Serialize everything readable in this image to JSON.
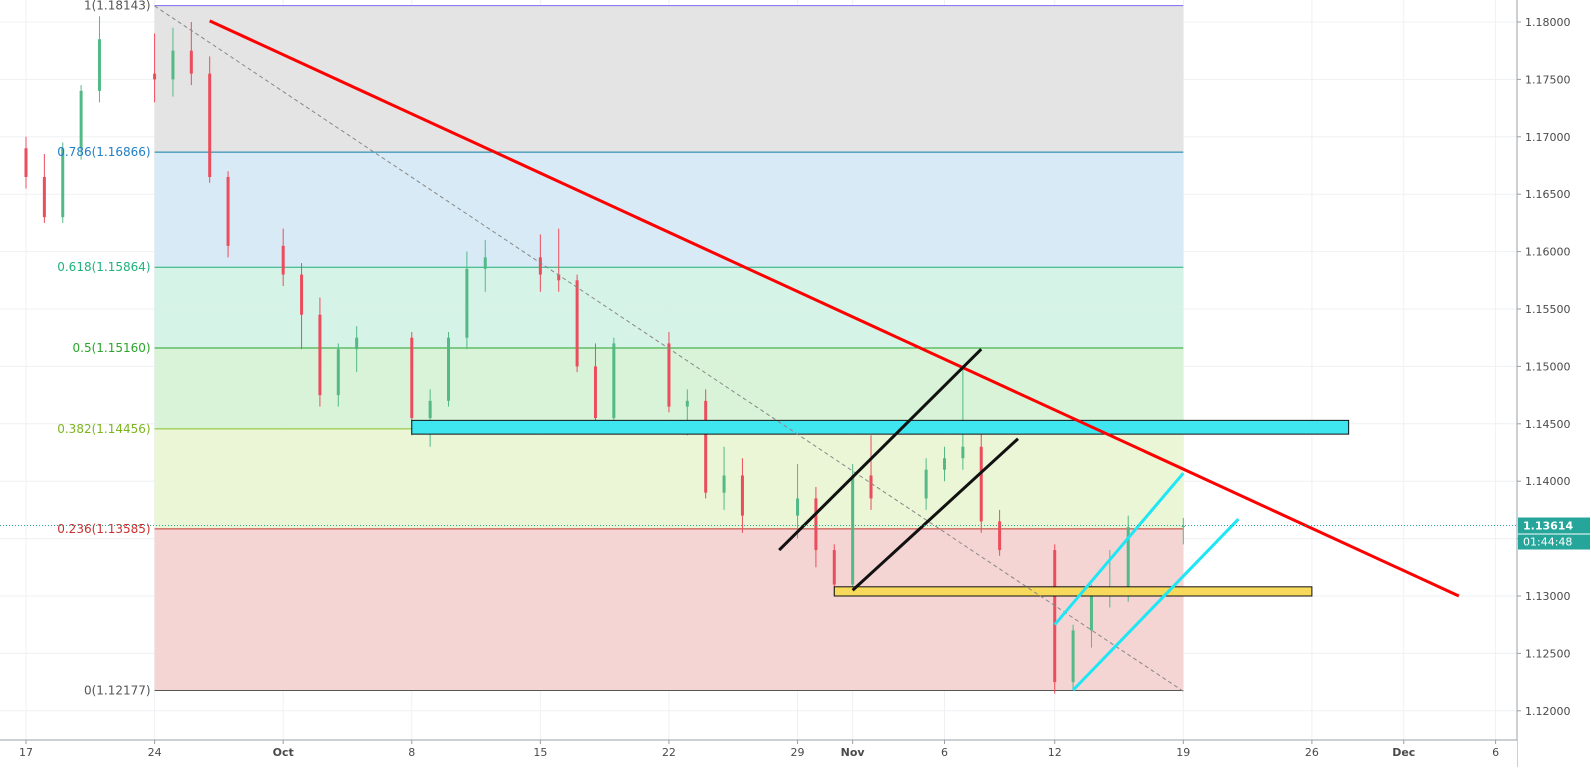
{
  "chart_data": {
    "type": "candlestick",
    "title": "",
    "xlabel": "",
    "ylabel": "",
    "ylim": [
      1.1195,
      1.182
    ],
    "y_ticks": [
      "1.18000",
      "1.17500",
      "1.17000",
      "1.16500",
      "1.16000",
      "1.15500",
      "1.15000",
      "1.14500",
      "1.14000",
      "1.13500",
      "1.13000",
      "1.12500",
      "1.12000"
    ],
    "x_ticks": [
      "17",
      "24",
      "Oct",
      "8",
      "15",
      "22",
      "29",
      "Nov",
      "6",
      "12",
      "19",
      "26",
      "Dec",
      "6"
    ],
    "x_tick_dates": [
      "2018-09-17",
      "2018-09-24",
      "2018-10-01",
      "2018-10-08",
      "2018-10-15",
      "2018-10-22",
      "2018-10-29",
      "2018-11-01",
      "2018-11-06",
      "2018-11-12",
      "2018-11-19",
      "2018-11-26",
      "2018-12-01",
      "2018-12-06"
    ],
    "current_price": "1.13614",
    "countdown": "01:44:48",
    "fib_levels": [
      {
        "ratio": "1",
        "price": 1.18143,
        "label": "1(1.18143)",
        "line_color": "#7b68ee",
        "label_color": "#555555"
      },
      {
        "ratio": "0.786",
        "price": 1.16866,
        "label": "0.786(1.16866)",
        "line_color": "#0f7ea8",
        "label_color": "#1f7fc4"
      },
      {
        "ratio": "0.618",
        "price": 1.15864,
        "label": "0.618(1.15864)",
        "line_color": "#22b07a",
        "label_color": "#1fb37d"
      },
      {
        "ratio": "0.5",
        "price": 1.1516,
        "label": "0.5(1.15160)",
        "line_color": "#2aa22a",
        "label_color": "#2aa52a"
      },
      {
        "ratio": "0.382",
        "price": 1.14456,
        "label": "0.382(1.14456)",
        "line_color": "#88c02a",
        "label_color": "#7cb520"
      },
      {
        "ratio": "0.236",
        "price": 1.13585,
        "label": "0.236(1.13585)",
        "line_color": "#c43434",
        "label_color": "#cc3030"
      },
      {
        "ratio": "0",
        "price": 1.12177,
        "label": "0(1.12177)",
        "line_color": "#555555",
        "label_color": "#555555"
      }
    ],
    "fib_zone_colors": [
      "#e2e2e2",
      "#d5e8f4",
      "#d3f2e6",
      "#d5f2d5",
      "#e8f5d2",
      "#f4d0d0"
    ],
    "trendlines": [
      {
        "name": "red-downtrend-line",
        "color": "#ff0000",
        "from": [
          "2018-09-27",
          1.1801
        ],
        "to": [
          "2018-12-04",
          1.13
        ]
      },
      {
        "name": "fib-diagonal",
        "color": "#888888",
        "dashed": true,
        "from": [
          "2018-09-24",
          1.1814
        ],
        "to": [
          "2018-11-19",
          1.1217
        ]
      },
      {
        "name": "black-channel-upper",
        "color": "#111111",
        "from": [
          "2018-10-28",
          1.134
        ],
        "to": [
          "2018-11-08",
          1.1515
        ]
      },
      {
        "name": "black-channel-lower",
        "color": "#111111",
        "from": [
          "2018-11-01",
          1.1305
        ],
        "to": [
          "2018-11-10",
          1.1437
        ]
      },
      {
        "name": "cyan-channel-upper",
        "color": "#1fe6f5",
        "from": [
          "2018-11-12",
          1.1275
        ],
        "to": [
          "2018-11-19",
          1.1407
        ]
      },
      {
        "name": "cyan-channel-lower",
        "color": "#1fe6f5",
        "from": [
          "2018-11-13",
          1.1218
        ],
        "to": [
          "2018-11-22",
          1.1367
        ]
      }
    ],
    "zones": [
      {
        "name": "cyan-resistance-zone",
        "color": "#3fe6f0",
        "from": "2018-10-08",
        "to": "2018-11-28",
        "top": 1.1453,
        "bottom": 1.1441
      },
      {
        "name": "yellow-support-zone",
        "color": "#f7d95c",
        "from": "2018-10-31",
        "to": "2018-11-26",
        "top": 1.1308,
        "bottom": 1.13
      }
    ],
    "candles": [
      [
        "2018-09-17",
        1.169,
        1.17,
        1.1655,
        1.1665
      ],
      [
        "2018-09-18",
        1.1665,
        1.1685,
        1.1625,
        1.163
      ],
      [
        "2018-09-19",
        1.163,
        1.1695,
        1.1625,
        1.169
      ],
      [
        "2018-09-20",
        1.169,
        1.1745,
        1.168,
        1.174
      ],
      [
        "2018-09-21",
        1.174,
        1.1805,
        1.173,
        1.1785
      ],
      [
        "2018-09-24",
        1.1755,
        1.179,
        1.173,
        1.175
      ],
      [
        "2018-09-25",
        1.175,
        1.1795,
        1.1735,
        1.1775
      ],
      [
        "2018-09-26",
        1.1775,
        1.18,
        1.1745,
        1.1755
      ],
      [
        "2018-09-27",
        1.1755,
        1.177,
        1.166,
        1.1665
      ],
      [
        "2018-09-28",
        1.1665,
        1.167,
        1.1595,
        1.1605
      ],
      [
        "2018-10-01",
        1.1605,
        1.162,
        1.157,
        1.158
      ],
      [
        "2018-10-02",
        1.158,
        1.159,
        1.1515,
        1.1545
      ],
      [
        "2018-10-03",
        1.1545,
        1.156,
        1.1465,
        1.1475
      ],
      [
        "2018-10-04",
        1.1475,
        1.152,
        1.1465,
        1.1515
      ],
      [
        "2018-10-05",
        1.1515,
        1.1535,
        1.1495,
        1.1525
      ],
      [
        "2018-10-08",
        1.1525,
        1.153,
        1.144,
        1.1455
      ],
      [
        "2018-10-09",
        1.1455,
        1.148,
        1.143,
        1.147
      ],
      [
        "2018-10-10",
        1.147,
        1.153,
        1.1465,
        1.1525
      ],
      [
        "2018-10-11",
        1.1525,
        1.16,
        1.1515,
        1.1585
      ],
      [
        "2018-10-12",
        1.1585,
        1.161,
        1.1565,
        1.1595
      ],
      [
        "2018-10-15",
        1.1595,
        1.1615,
        1.1565,
        1.158
      ],
      [
        "2018-10-16",
        1.158,
        1.162,
        1.1565,
        1.1575
      ],
      [
        "2018-10-17",
        1.1575,
        1.158,
        1.1495,
        1.15
      ],
      [
        "2018-10-18",
        1.15,
        1.152,
        1.145,
        1.1455
      ],
      [
        "2018-10-19",
        1.1455,
        1.1525,
        1.1445,
        1.152
      ],
      [
        "2018-10-22",
        1.152,
        1.153,
        1.146,
        1.1465
      ],
      [
        "2018-10-23",
        1.1465,
        1.148,
        1.144,
        1.147
      ],
      [
        "2018-10-24",
        1.147,
        1.148,
        1.1385,
        1.139
      ],
      [
        "2018-10-25",
        1.139,
        1.143,
        1.1375,
        1.1405
      ],
      [
        "2018-10-26",
        1.1405,
        1.142,
        1.1355,
        1.137
      ],
      [
        "2018-10-29",
        1.137,
        1.1415,
        1.135,
        1.1385
      ],
      [
        "2018-10-30",
        1.1385,
        1.1395,
        1.1325,
        1.134
      ],
      [
        "2018-10-31",
        1.134,
        1.1345,
        1.13,
        1.131
      ],
      [
        "2018-11-01",
        1.131,
        1.1415,
        1.1305,
        1.1405
      ],
      [
        "2018-11-02",
        1.1405,
        1.144,
        1.1375,
        1.1385
      ],
      [
        "2018-11-05",
        1.1385,
        1.142,
        1.1375,
        1.141
      ],
      [
        "2018-11-06",
        1.141,
        1.143,
        1.14,
        1.142
      ],
      [
        "2018-11-07",
        1.142,
        1.15,
        1.141,
        1.143
      ],
      [
        "2018-11-08",
        1.143,
        1.1445,
        1.1355,
        1.1365
      ],
      [
        "2018-11-09",
        1.1365,
        1.1375,
        1.1335,
        1.134
      ],
      [
        "2018-11-12",
        1.134,
        1.1345,
        1.1215,
        1.1225
      ],
      [
        "2018-11-13",
        1.1225,
        1.1275,
        1.1218,
        1.127
      ],
      [
        "2018-11-14",
        1.127,
        1.131,
        1.1255,
        1.13
      ],
      [
        "2018-11-15",
        1.13,
        1.134,
        1.129,
        1.1305
      ],
      [
        "2018-11-16",
        1.1305,
        1.137,
        1.1295,
        1.136
      ],
      [
        "2018-11-19",
        1.136,
        1.1368,
        1.1345,
        1.1361
      ]
    ]
  }
}
